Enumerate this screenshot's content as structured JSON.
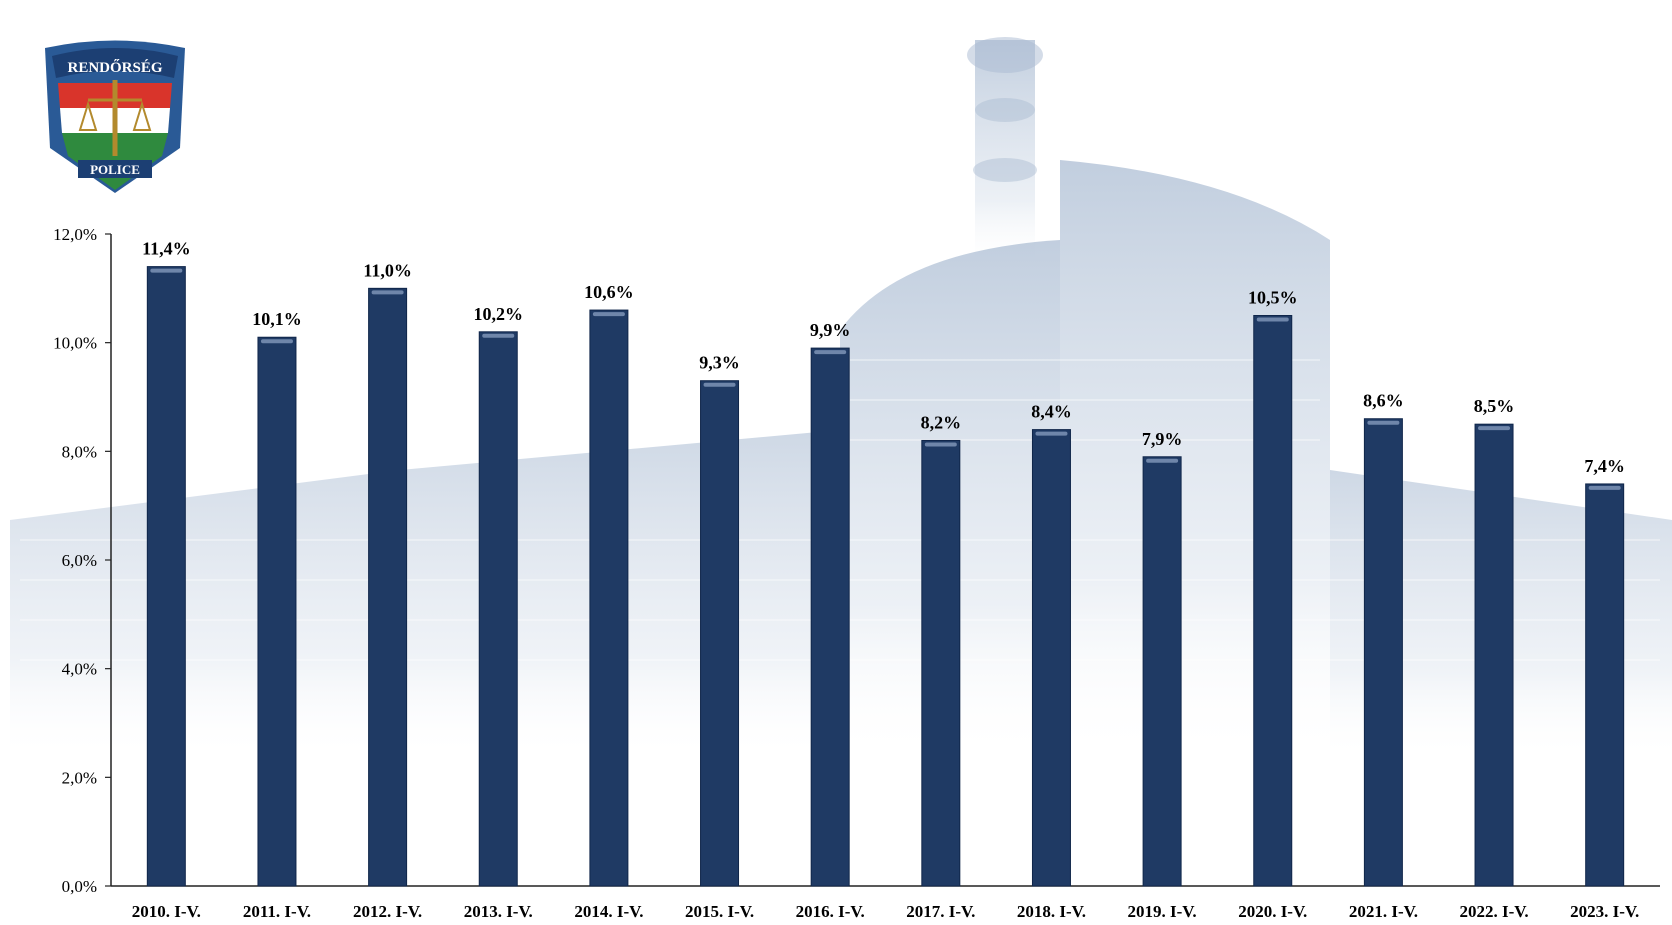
{
  "logo": {
    "top_text": "RENDŐRSÉG",
    "bottom_text": "POLICE"
  },
  "colors": {
    "bar": "#1f3a64",
    "bar_highlight": "#6f86aa",
    "axis": "#222222",
    "building": "#b7c6da"
  },
  "chart_data": {
    "type": "bar",
    "title": "",
    "xlabel": "",
    "ylabel": "",
    "categories": [
      "2010. I-V.",
      "2011. I-V.",
      "2012. I-V.",
      "2013. I-V.",
      "2014. I-V.",
      "2015. I-V.",
      "2016. I-V.",
      "2017. I-V.",
      "2018. I-V.",
      "2019. I-V.",
      "2020. I-V.",
      "2021. I-V.",
      "2022. I-V.",
      "2023. I-V."
    ],
    "values": [
      11.4,
      10.1,
      11.0,
      10.2,
      10.6,
      9.3,
      9.9,
      8.2,
      8.4,
      7.9,
      10.5,
      8.6,
      8.5,
      7.4
    ],
    "data_labels": [
      "11,4%",
      "10,1%",
      "11,0%",
      "10,2%",
      "10,6%",
      "9,3%",
      "9,9%",
      "8,2%",
      "8,4%",
      "7,9%",
      "10,5%",
      "8,6%",
      "8,5%",
      "7,4%"
    ],
    "yticks": [
      0,
      2,
      4,
      6,
      8,
      10,
      12
    ],
    "ytick_labels": [
      "0,0%",
      "2,0%",
      "4,0%",
      "6,0%",
      "8,0%",
      "10,0%",
      "12,0%"
    ],
    "ylim": [
      0,
      12
    ],
    "grid": false,
    "legend": "none"
  }
}
